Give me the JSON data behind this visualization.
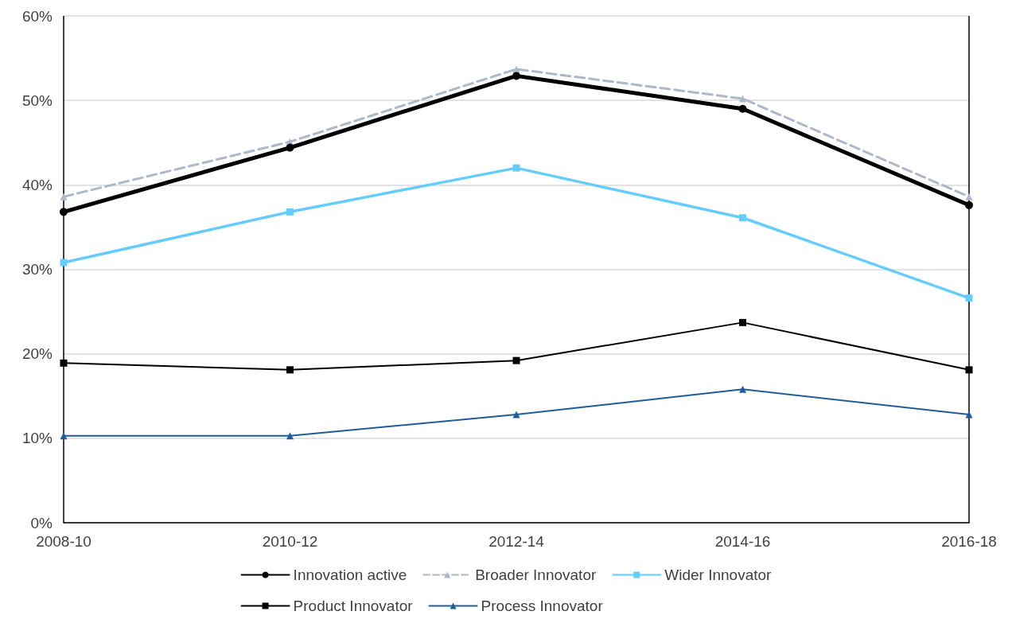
{
  "chart_data": {
    "type": "line",
    "categories": [
      "2008-10",
      "2010-12",
      "2012-14",
      "2014-16",
      "2016-18"
    ],
    "series": [
      {
        "name": "Innovation active",
        "color": "#000000",
        "marker": "circle",
        "line_style": "solid",
        "values": [
          36.8,
          44.4,
          52.9,
          49.0,
          37.6
        ]
      },
      {
        "name": "Broader Innovator",
        "color": "#adb9ca",
        "marker": "triangle",
        "line_style": "dashed",
        "values": [
          38.6,
          45.1,
          53.7,
          50.2,
          38.6
        ]
      },
      {
        "name": "Wider Innovator",
        "color": "#66ccff",
        "marker": "square",
        "line_style": "solid",
        "values": [
          30.8,
          36.8,
          42.0,
          36.1,
          26.6
        ]
      },
      {
        "name": "Product Innovator",
        "color": "#000000",
        "marker": "square",
        "line_style": "solid",
        "values": [
          18.9,
          18.1,
          19.2,
          23.7,
          18.1
        ]
      },
      {
        "name": "Process Innovator",
        "color": "#1f5c99",
        "marker": "triangle",
        "line_style": "solid",
        "values": [
          10.3,
          10.3,
          12.8,
          15.8,
          12.8
        ]
      }
    ],
    "ylim": [
      0,
      60
    ],
    "yticks": [
      {
        "value": 0,
        "label": "0%"
      },
      {
        "value": 10,
        "label": "10%"
      },
      {
        "value": 20,
        "label": "20%"
      },
      {
        "value": 30,
        "label": "30%"
      },
      {
        "value": 40,
        "label": "40%"
      },
      {
        "value": 50,
        "label": "50%"
      },
      {
        "value": 60,
        "label": "60%"
      }
    ],
    "grid": "y",
    "legend": "bottom"
  }
}
